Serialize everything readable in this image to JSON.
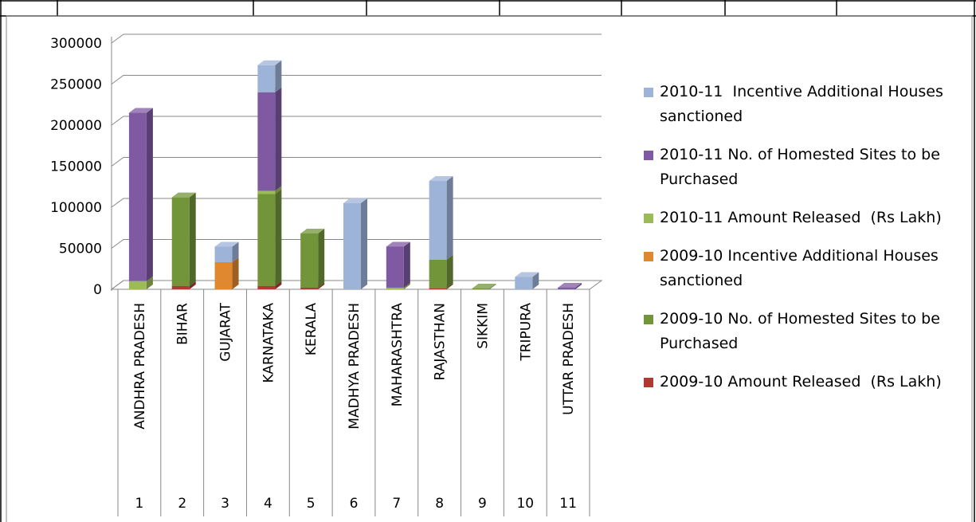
{
  "chart_data": {
    "type": "bar",
    "stacked": true,
    "categories": [
      "ANDHRA PRADESH",
      "BIHAR",
      "GUJARAT",
      "KARNATAKA",
      "KERALA",
      "MADHYA PRADESH",
      "MAHARASHTRA",
      "RAJASTHAN",
      "SIKKIM",
      "TRIPURA",
      "UTTAR PRADESH"
    ],
    "category_numbers": [
      1,
      2,
      3,
      4,
      5,
      6,
      7,
      8,
      9,
      10,
      11
    ],
    "series": [
      {
        "name": "2009-10 Amount Released  (Rs Lakh)",
        "color": "#b03a30",
        "values": [
          0,
          4000,
          0,
          4000,
          2000,
          0,
          0,
          1000,
          0,
          0,
          0
        ]
      },
      {
        "name": "2009-10 No. of Homested Sites to be Purchased",
        "color": "#72953a",
        "values": [
          0,
          108000,
          0,
          112000,
          66000,
          0,
          0,
          35000,
          1000,
          0,
          0
        ]
      },
      {
        "name": "2009-10 Incentive Additional Houses sanctioned",
        "color": "#e08830",
        "values": [
          0,
          0,
          33000,
          0,
          0,
          0,
          0,
          0,
          0,
          0,
          0
        ]
      },
      {
        "name": "2010-11 Amount Released  (Rs Lakh)",
        "color": "#9bbb59",
        "values": [
          10000,
          0,
          0,
          4000,
          0,
          0,
          2000,
          0,
          0,
          0,
          0
        ]
      },
      {
        "name": "2010-11 No. of Homested Sites to be Purchased",
        "color": "#7f5aa2",
        "values": [
          205000,
          0,
          0,
          120000,
          0,
          0,
          50000,
          0,
          0,
          0,
          2000
        ]
      },
      {
        "name": "2010-11  Incentive Additional Houses sanctioned",
        "color": "#9db3d8",
        "values": [
          0,
          0,
          19000,
          33000,
          0,
          105000,
          0,
          96000,
          0,
          15000,
          0
        ]
      }
    ],
    "ylim": [
      0,
      300000
    ],
    "yticks": [
      0,
      50000,
      100000,
      150000,
      200000,
      250000,
      300000
    ],
    "grid": true,
    "legend": "right"
  }
}
